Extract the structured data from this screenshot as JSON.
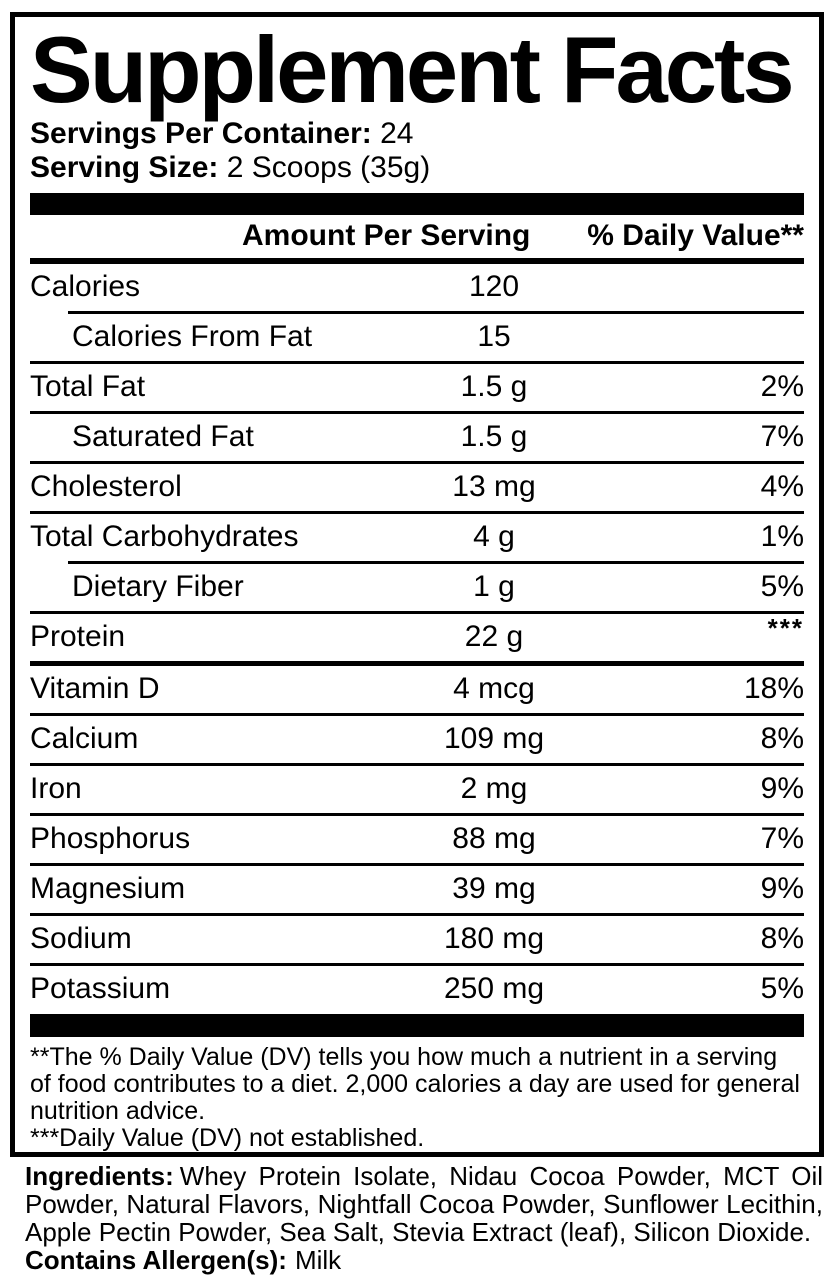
{
  "colors": {
    "ink": "#000000",
    "background": "#ffffff"
  },
  "panel": {
    "title": "Supplement Facts",
    "servings_label": "Servings Per Container:",
    "servings_value": "24",
    "serving_size_label": "Serving Size:",
    "serving_size_value": "2 Scoops (35g)",
    "header": {
      "amount": "Amount Per Serving",
      "daily_value": "% Daily Value**"
    },
    "rows": [
      {
        "name": "Calories",
        "amount": "120",
        "dv": "",
        "indent": false,
        "divider_above": "none"
      },
      {
        "name": "Calories From Fat",
        "amount": "15",
        "dv": "",
        "indent": true,
        "divider_above": "thin-indent"
      },
      {
        "name": "Total Fat",
        "amount": "1.5 g",
        "dv": "2%",
        "indent": false,
        "divider_above": "thin"
      },
      {
        "name": "Saturated Fat",
        "amount": "1.5 g",
        "dv": "7%",
        "indent": true,
        "divider_above": "thin"
      },
      {
        "name": "Cholesterol",
        "amount": "13 mg",
        "dv": "4%",
        "indent": false,
        "divider_above": "thin"
      },
      {
        "name": "Total Carbohydrates",
        "amount": "4 g",
        "dv": "1%",
        "indent": false,
        "divider_above": "thin"
      },
      {
        "name": "Dietary Fiber",
        "amount": "1 g",
        "dv": "5%",
        "indent": true,
        "divider_above": "thin-indent"
      },
      {
        "name": "Protein",
        "amount": "22 g",
        "dv": "***",
        "indent": false,
        "divider_above": "thin"
      },
      {
        "name": "Vitamin D",
        "amount": "4 mcg",
        "dv": "18%",
        "indent": false,
        "divider_above": "medium"
      },
      {
        "name": "Calcium",
        "amount": "109 mg",
        "dv": "8%",
        "indent": false,
        "divider_above": "thin"
      },
      {
        "name": "Iron",
        "amount": "2 mg",
        "dv": "9%",
        "indent": false,
        "divider_above": "thin"
      },
      {
        "name": "Phosphorus",
        "amount": "88 mg",
        "dv": "7%",
        "indent": false,
        "divider_above": "thin"
      },
      {
        "name": "Magnesium",
        "amount": "39 mg",
        "dv": "9%",
        "indent": false,
        "divider_above": "thin"
      },
      {
        "name": "Sodium",
        "amount": "180 mg",
        "dv": "8%",
        "indent": false,
        "divider_above": "thin"
      },
      {
        "name": "Potassium",
        "amount": "250 mg",
        "dv": "5%",
        "indent": false,
        "divider_above": "thin"
      }
    ],
    "footnotes": [
      "**The % Daily Value (DV) tells you how much a nutrient in a serving of food contributes to a diet. 2,000 calories a day are used for general nutrition advice.",
      "***Daily Value (DV) not established."
    ]
  },
  "ingredients": {
    "label": "Ingredients:",
    "text": "Whey Protein Isolate, Nidau Cocoa Powder, MCT Oil Powder, Natural Flavors, Nightfall Cocoa Powder, Sunflower Lecithin, Apple Pectin Powder, Sea Salt, Stevia Extract (leaf), Silicon Dioxide.",
    "allergen_label": "Contains Allergen(s):",
    "allergen_value": "Milk"
  }
}
